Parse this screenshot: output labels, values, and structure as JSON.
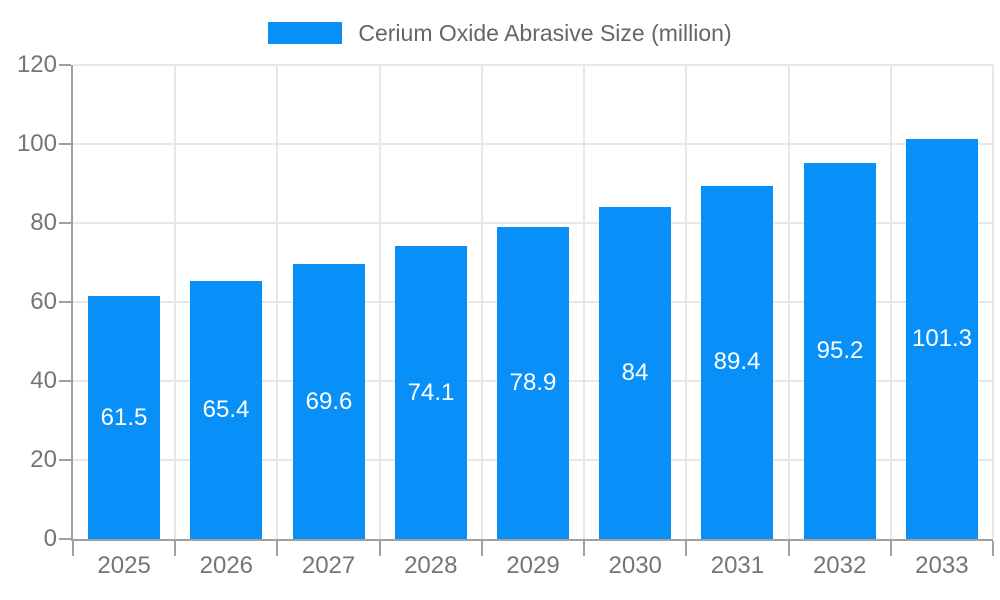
{
  "legend": {
    "label": "Cerium Oxide Abrasive Size (million)"
  },
  "chart_data": {
    "type": "bar",
    "title": "Cerium Oxide Abrasive Size (million)",
    "categories": [
      "2025",
      "2026",
      "2027",
      "2028",
      "2029",
      "2030",
      "2031",
      "2032",
      "2033"
    ],
    "values": [
      61.5,
      65.4,
      69.6,
      74.1,
      78.9,
      84,
      89.4,
      95.2,
      101.3
    ],
    "value_labels": [
      "61.5",
      "65.4",
      "69.6",
      "74.1",
      "78.9",
      "84",
      "89.4",
      "95.2",
      "101.3"
    ],
    "xlabel": "",
    "ylabel": "",
    "ylim": [
      0,
      120
    ],
    "yticks": [
      0,
      20,
      40,
      60,
      80,
      100,
      120
    ],
    "grid": true,
    "legend_position": "top",
    "colors": {
      "bar": "#0990f8",
      "value_text": "#ffffff",
      "axis_text": "#757575",
      "legend_text": "#666666",
      "grid_line": "#e8e8e8",
      "axis_line": "#a0a0a0",
      "background": "#ffffff"
    }
  }
}
